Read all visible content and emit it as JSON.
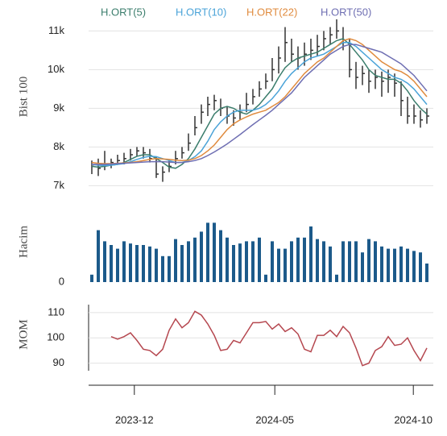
{
  "chart_data": [
    {
      "type": "ohlc",
      "y_label": "Bist 100",
      "x": [
        1,
        2,
        3,
        4,
        5,
        6,
        7,
        8,
        9,
        10,
        11,
        12,
        13,
        14,
        15,
        16,
        17,
        18,
        19,
        20,
        21,
        22,
        23,
        24,
        25,
        26,
        27,
        28,
        29,
        30,
        31,
        32,
        33,
        34,
        35,
        36,
        37,
        38,
        39,
        40,
        41,
        42,
        43,
        44,
        45,
        46,
        47,
        48,
        49,
        50,
        51,
        52,
        53
      ],
      "high": [
        7650,
        7700,
        7900,
        7700,
        7800,
        7850,
        7950,
        8000,
        8000,
        7950,
        7750,
        7500,
        7650,
        7900,
        8000,
        8350,
        8800,
        9100,
        9300,
        9350,
        9250,
        9050,
        8950,
        9100,
        9400,
        9500,
        9700,
        9900,
        10300,
        10600,
        11100,
        10800,
        10600,
        10700,
        10800,
        10900,
        11000,
        11100,
        11300,
        11100,
        10800,
        10200,
        10100,
        10000,
        10000,
        9950,
        10000,
        9900,
        9700,
        9300,
        9100,
        8950,
        9000
      ],
      "low": [
        7300,
        7250,
        7400,
        7450,
        7550,
        7550,
        7650,
        7750,
        7700,
        7600,
        7200,
        7100,
        7350,
        7550,
        7700,
        7900,
        8300,
        8600,
        8800,
        8950,
        8800,
        8600,
        8550,
        8700,
        8900,
        9100,
        9300,
        9500,
        9700,
        9900,
        10200,
        10200,
        10000,
        10100,
        10250,
        10350,
        10500,
        10650,
        10800,
        10500,
        9800,
        9500,
        9600,
        9400,
        9500,
        9300,
        9400,
        9300,
        8800,
        8600,
        8600,
        8500,
        8600
      ],
      "close": [
        7500,
        7450,
        7550,
        7600,
        7650,
        7700,
        7800,
        7900,
        7850,
        7700,
        7300,
        7350,
        7500,
        7700,
        7850,
        8100,
        8500,
        8900,
        9100,
        9200,
        9000,
        8800,
        8750,
        8900,
        9100,
        9300,
        9500,
        9700,
        10000,
        10300,
        10700,
        10400,
        10300,
        10400,
        10500,
        10600,
        10800,
        10900,
        11000,
        10700,
        10000,
        9800,
        9900,
        9700,
        9800,
        9700,
        9800,
        9650,
        9200,
        8800,
        8800,
        8700,
        8800
      ],
      "bar_color": "#333333",
      "series": [
        {
          "name": "H.ORT(5)",
          "color": "#3b7d6c",
          "values": [
            7500,
            7480,
            7500,
            7530,
            7550,
            7600,
            7680,
            7760,
            7800,
            7800,
            7700,
            7600,
            7480,
            7450,
            7550,
            7700,
            7950,
            8250,
            8550,
            8850,
            9000,
            9050,
            9000,
            8900,
            8850,
            8950,
            9100,
            9300,
            9500,
            9800,
            10050,
            10200,
            10300,
            10350,
            10400,
            10450,
            10550,
            10650,
            10750,
            10800,
            10650,
            10450,
            10250,
            10000,
            9850,
            9800,
            9750,
            9750,
            9650,
            9450,
            9200,
            9000,
            8850
          ]
        },
        {
          "name": "H.ORT(10)",
          "color": "#4aa3d8",
          "values": [
            7550,
            7530,
            7520,
            7530,
            7550,
            7570,
            7620,
            7680,
            7730,
            7760,
            7750,
            7700,
            7650,
            7600,
            7600,
            7650,
            7750,
            7900,
            8150,
            8450,
            8650,
            8800,
            8900,
            8950,
            8950,
            8950,
            9000,
            9100,
            9250,
            9450,
            9700,
            9900,
            10050,
            10200,
            10300,
            10350,
            10400,
            10500,
            10600,
            10700,
            10700,
            10600,
            10450,
            10300,
            10150,
            10000,
            9900,
            9800,
            9750,
            9650,
            9500,
            9300,
            9100
          ]
        },
        {
          "name": "H.ORT(22)",
          "color": "#e08b3e",
          "values": [
            7600,
            7580,
            7570,
            7570,
            7580,
            7590,
            7600,
            7620,
            7650,
            7680,
            7700,
            7690,
            7680,
            7660,
            7650,
            7660,
            7700,
            7780,
            7900,
            8050,
            8250,
            8450,
            8600,
            8700,
            8780,
            8850,
            8900,
            8950,
            9050,
            9150,
            9300,
            9500,
            9700,
            9900,
            10050,
            10200,
            10300,
            10450,
            10600,
            10750,
            10800,
            10750,
            10650,
            10500,
            10350,
            10200,
            10100,
            10000,
            9950,
            9850,
            9700,
            9500,
            9300
          ]
        },
        {
          "name": "H.ORT(50)",
          "color": "#6e6eb2",
          "values": [
            7550,
            7550,
            7550,
            7560,
            7570,
            7580,
            7590,
            7600,
            7610,
            7620,
            7620,
            7620,
            7610,
            7600,
            7600,
            7620,
            7650,
            7700,
            7780,
            7870,
            7970,
            8080,
            8200,
            8320,
            8450,
            8580,
            8700,
            8820,
            8950,
            9100,
            9250,
            9400,
            9600,
            9800,
            9950,
            10100,
            10250,
            10400,
            10500,
            10600,
            10650,
            10650,
            10600,
            10550,
            10500,
            10450,
            10350,
            10250,
            10150,
            10000,
            9850,
            9650,
            9450
          ]
        }
      ],
      "ylim": [
        6800,
        11800
      ],
      "yticks": [
        {
          "value": 7000,
          "label": "7k"
        },
        {
          "value": 8000,
          "label": "8k"
        },
        {
          "value": 9000,
          "label": "9k"
        },
        {
          "value": 10000,
          "label": "10k"
        },
        {
          "value": 11000,
          "label": "11k"
        }
      ],
      "grid": true
    },
    {
      "type": "bar",
      "y_label": "Hacim",
      "x": [
        1,
        2,
        3,
        4,
        5,
        6,
        7,
        8,
        9,
        10,
        11,
        12,
        13,
        14,
        15,
        16,
        17,
        18,
        19,
        20,
        21,
        22,
        23,
        24,
        25,
        26,
        27,
        28,
        29,
        30,
        31,
        32,
        33,
        34,
        35,
        36,
        37,
        38,
        39,
        40,
        41,
        42,
        43,
        44,
        45,
        46,
        47,
        48,
        49,
        50,
        51,
        52,
        53
      ],
      "values": [
        10,
        70,
        55,
        50,
        45,
        55,
        52,
        50,
        50,
        48,
        45,
        35,
        35,
        58,
        50,
        55,
        60,
        68,
        80,
        80,
        70,
        60,
        50,
        52,
        55,
        55,
        60,
        10,
        55,
        45,
        45,
        55,
        60,
        60,
        75,
        58,
        55,
        48,
        10,
        55,
        55,
        55,
        40,
        58,
        55,
        48,
        45,
        45,
        48,
        45,
        42,
        40,
        25
      ],
      "color": "#1c5a8a",
      "ylim": [
        0,
        100
      ],
      "yticks": [
        0
      ],
      "grid": false
    },
    {
      "type": "line",
      "y_label": "MOM",
      "x": [
        1,
        2,
        3,
        4,
        5,
        6,
        7,
        8,
        9,
        10,
        11,
        12,
        13,
        14,
        15,
        16,
        17,
        18,
        19,
        20,
        21,
        22,
        23,
        24,
        25,
        26,
        27,
        28,
        29,
        30,
        31,
        32,
        33,
        34,
        35,
        36,
        37,
        38,
        39,
        40,
        41,
        42,
        43,
        44,
        45,
        46,
        47,
        48,
        49,
        50,
        51,
        52,
        53
      ],
      "values": [
        null,
        null,
        null,
        100.5,
        99.5,
        100.5,
        102,
        99,
        95.5,
        95,
        93,
        95.5,
        103,
        107.5,
        104,
        106,
        110.5,
        109,
        105.5,
        101,
        95,
        95.5,
        99,
        98,
        102,
        106,
        106,
        106.5,
        103.5,
        105.5,
        102.5,
        104,
        101.5,
        95.5,
        94.5,
        101,
        101,
        103,
        100.5,
        104.5,
        102,
        96,
        89,
        90,
        95,
        96.5,
        100.5,
        97,
        97.5,
        100,
        95,
        91,
        96
      ],
      "color": "#b5474f",
      "ylim": [
        87,
        117.3
      ],
      "yticks": [
        90,
        100,
        110
      ],
      "grid": true,
      "xlim": [
        0.5,
        54
      ],
      "xticks": [
        {
          "value": 7.6,
          "label": "2023-12"
        },
        {
          "value": 29.4,
          "label": "2024-05"
        },
        {
          "value": 50.9,
          "label": "2024-10"
        }
      ]
    }
  ]
}
